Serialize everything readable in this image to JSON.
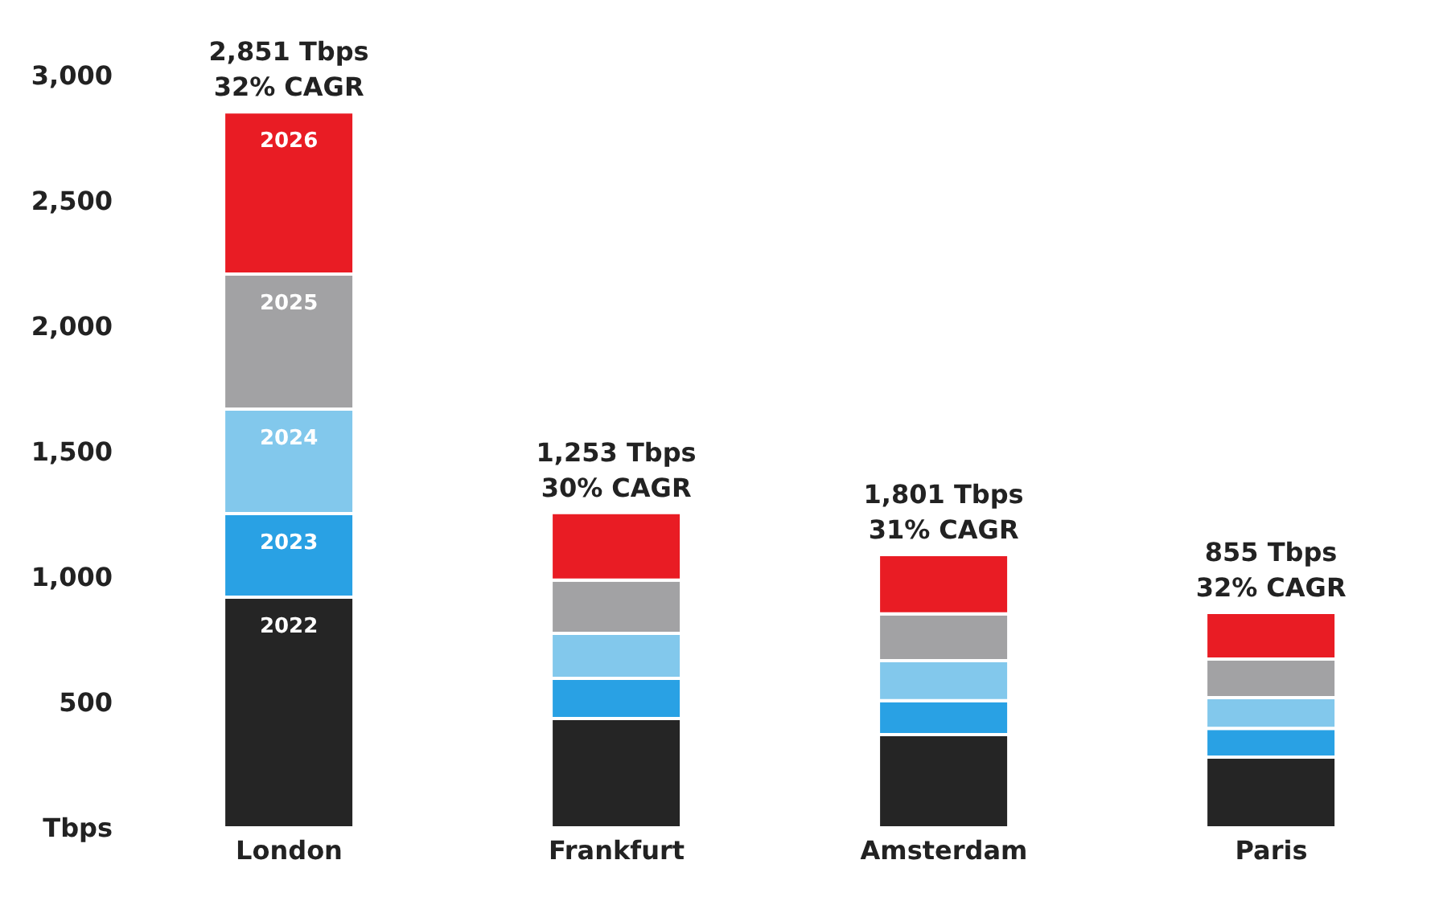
{
  "chart_data": {
    "type": "bar",
    "stacked": true,
    "categories": [
      "London",
      "Frankfurt",
      "Amsterdam",
      "Paris"
    ],
    "series": [
      {
        "name": "2022",
        "color": "#252525",
        "values": [
          920,
          436,
          372,
          282
        ]
      },
      {
        "name": "2023",
        "color": "#29a1e4",
        "values": [
          333,
          160,
          135,
          115
        ]
      },
      {
        "name": "2024",
        "color": "#82c8ec",
        "values": [
          417,
          180,
          160,
          122
        ]
      },
      {
        "name": "2025",
        "color": "#a2a2a4",
        "values": [
          538,
          212,
          186,
          154
        ]
      },
      {
        "name": "2026",
        "color": "#e91c24",
        "values": [
          647,
          269,
          237,
          186
        ]
      }
    ],
    "ylim": [
      0,
      3000
    ],
    "yticks": [
      {
        "value": 0,
        "label": "Tbps"
      },
      {
        "value": 500,
        "label": "500"
      },
      {
        "value": 1000,
        "label": "1,000"
      },
      {
        "value": 1500,
        "label": "1,500"
      },
      {
        "value": 2000,
        "label": "2,000"
      },
      {
        "value": 2500,
        "label": "2,500"
      },
      {
        "value": 3000,
        "label": "3,000"
      }
    ],
    "totals": [
      "2,851 Tbps\n32% CAGR",
      "1,253 Tbps\n30% CAGR",
      "1,801 Tbps\n31% CAGR",
      "855 Tbps\n32% CAGR"
    ],
    "grid": false,
    "legend": false
  }
}
